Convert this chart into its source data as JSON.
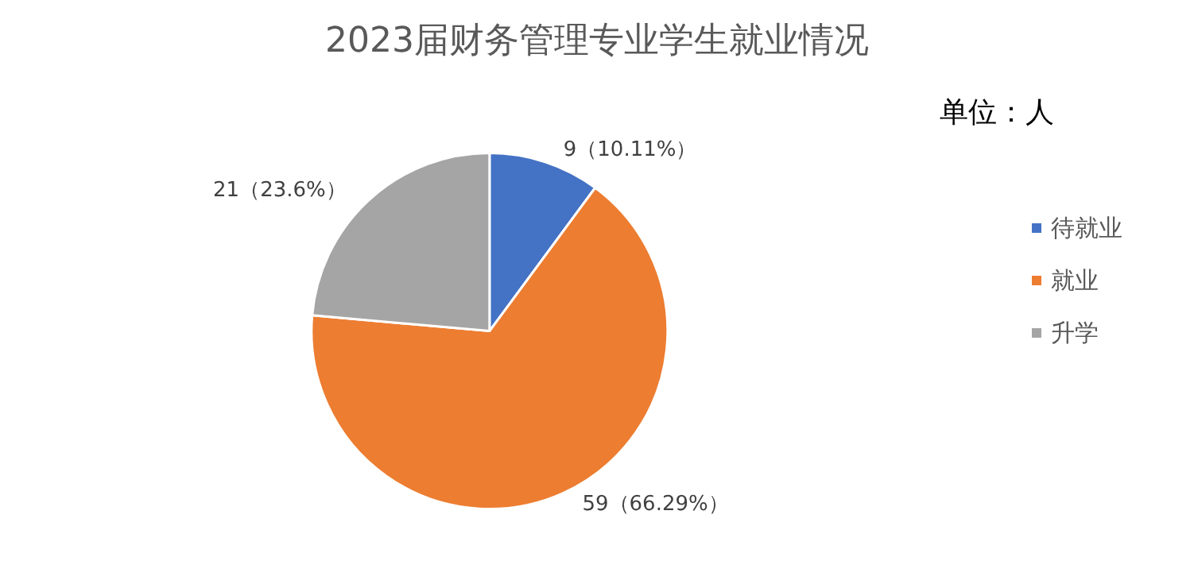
{
  "chart_data": {
    "type": "pie",
    "title": "2023届财务管理专业学生就业情况",
    "categories": [
      "待就业",
      "就业",
      "升学"
    ],
    "values": [
      9,
      59,
      21
    ],
    "colors": [
      "#4472c4",
      "#ed7d31",
      "#a5a5a5"
    ],
    "value_labels": [
      "9（10.11%）",
      "59（66.29%）",
      "21（23.6%）"
    ],
    "annotations": [
      "单位：人"
    ],
    "legend": "right"
  }
}
